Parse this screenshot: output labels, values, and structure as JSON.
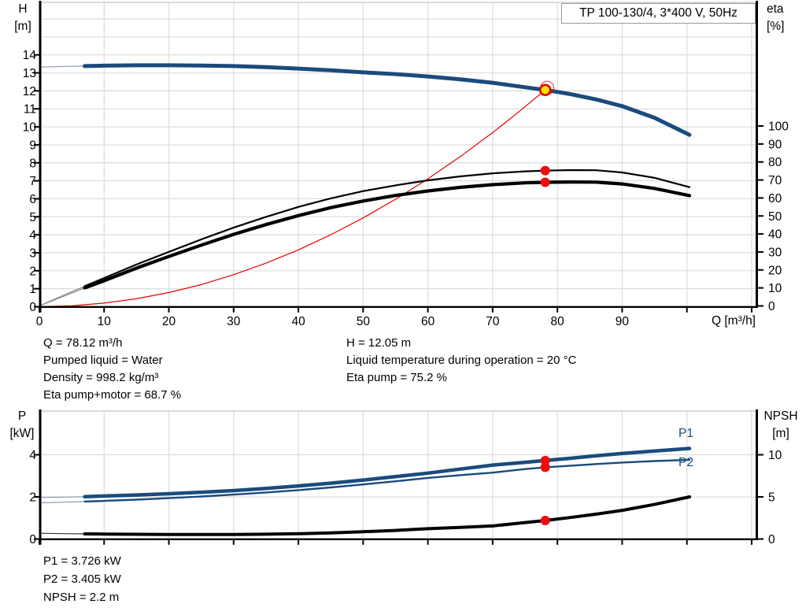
{
  "title_box": "TP 100-130/4, 3*400 V, 50Hz",
  "colors": {
    "curve_blue": "#1a4b7d",
    "curve_black": "#000000",
    "curve_red": "#e60000",
    "marker_red": "#ee0d0d",
    "marker_yellow": "#ffe400",
    "thin_blue": "#8b9bb0",
    "thin_gray": "#8a8a8a",
    "thin_dark": "#333333",
    "grid": "#dcdcdc",
    "border": "#c4c4c4",
    "axis": "#000000"
  },
  "top_chart": {
    "left_axis": {
      "title_line1": "H",
      "title_line2": "[m]",
      "ticks": [
        0,
        1,
        2,
        3,
        4,
        5,
        6,
        7,
        8,
        9,
        10,
        11,
        12,
        13,
        14
      ]
    },
    "right_axis": {
      "title_line1": "eta",
      "title_line2": "[%]",
      "ticks": [
        0,
        10,
        20,
        30,
        40,
        50,
        60,
        70,
        80,
        90,
        100
      ]
    },
    "x_axis": {
      "title": "Q [m³/h]",
      "labeled_ticks": [
        0,
        10,
        20,
        30,
        40,
        50,
        60,
        70,
        80,
        90
      ]
    }
  },
  "bottom_chart": {
    "left_axis": {
      "title_line1": "P",
      "title_line2": "[kW]",
      "ticks": [
        0,
        2,
        4
      ]
    },
    "right_axis": {
      "title_line1": "NPSH",
      "title_line2": "[m]",
      "ticks": [
        0,
        5,
        10
      ]
    },
    "curve_labels": {
      "p1": "P1",
      "p2": "P2"
    }
  },
  "info_top": {
    "left": [
      "Q = 78.12 m³/h",
      "Pumped liquid = Water",
      "Density = 998.2 kg/m³",
      "Eta pump+motor = 68.7 %"
    ],
    "right": [
      "H = 12.05 m",
      "Liquid temperature during operation = 20 °C",
      "Eta pump = 75.2 %"
    ]
  },
  "info_bottom": [
    "P1 = 3.726 kW",
    "P2 = 3.405 kW",
    "NPSH = 2.2 m"
  ],
  "chart_data": [
    {
      "type": "line",
      "title": "QH / efficiency curves",
      "xlabel": "Q [m³/h]",
      "x_range": [
        0,
        111
      ],
      "y_left": {
        "label": "H [m]",
        "range": [
          0,
          16.9
        ]
      },
      "y_right": {
        "label": "eta [%]",
        "range": [
          0,
          100
        ]
      },
      "grid": true,
      "series": [
        {
          "name": "system-curve",
          "axis": "left",
          "color": "red",
          "width": 1.2,
          "split": false,
          "points": [
            [
              0,
              0
            ],
            [
              5,
              0.05
            ],
            [
              10,
              0.2
            ],
            [
              15,
              0.44
            ],
            [
              20,
              0.79
            ],
            [
              25,
              1.23
            ],
            [
              30,
              1.78
            ],
            [
              35,
              2.42
            ],
            [
              40,
              3.16
            ],
            [
              45,
              4.0
            ],
            [
              50,
              4.94
            ],
            [
              55,
              5.97
            ],
            [
              60,
              7.11
            ],
            [
              65,
              8.35
            ],
            [
              70,
              9.68
            ],
            [
              74,
              10.82
            ],
            [
              78.12,
              12.05
            ]
          ]
        },
        {
          "name": "eta-pump",
          "axis": "right",
          "color": "black",
          "width": 2.2,
          "split": true,
          "points": [
            [
              0,
              0
            ],
            [
              3,
              4.8
            ],
            [
              7,
              11
            ],
            [
              10,
              15.5
            ],
            [
              15,
              23
            ],
            [
              20,
              30
            ],
            [
              25,
              37
            ],
            [
              30,
              43.5
            ],
            [
              35,
              49.5
            ],
            [
              40,
              55
            ],
            [
              45,
              59.8
            ],
            [
              50,
              63.8
            ],
            [
              55,
              67
            ],
            [
              60,
              69.8
            ],
            [
              65,
              72
            ],
            [
              70,
              73.7
            ],
            [
              75,
              74.8
            ],
            [
              78.12,
              75.2
            ],
            [
              82,
              75.5
            ],
            [
              86,
              75.4
            ],
            [
              90,
              74.2
            ],
            [
              95,
              71.2
            ],
            [
              100.4,
              66
            ]
          ]
        },
        {
          "name": "eta-pump-motor",
          "axis": "right",
          "color": "black",
          "width": 4.2,
          "split": true,
          "points": [
            [
              0,
              0
            ],
            [
              3,
              4.3
            ],
            [
              7,
              10
            ],
            [
              10,
              14
            ],
            [
              15,
              21
            ],
            [
              20,
              27.5
            ],
            [
              25,
              33.8
            ],
            [
              30,
              39.8
            ],
            [
              35,
              45.2
            ],
            [
              40,
              50.2
            ],
            [
              45,
              54.6
            ],
            [
              50,
              58.3
            ],
            [
              55,
              61.4
            ],
            [
              60,
              63.9
            ],
            [
              65,
              65.9
            ],
            [
              70,
              67.4
            ],
            [
              75,
              68.4
            ],
            [
              78.12,
              68.7
            ],
            [
              82,
              68.9
            ],
            [
              86,
              68.8
            ],
            [
              90,
              67.8
            ],
            [
              95,
              65.3
            ],
            [
              100.4,
              61.3
            ]
          ]
        },
        {
          "name": "head",
          "axis": "left",
          "color": "blue",
          "width": 5,
          "split": true,
          "points": [
            [
              0,
              13.32
            ],
            [
              4,
              13.36
            ],
            [
              7,
              13.38
            ],
            [
              10,
              13.4
            ],
            [
              15,
              13.42
            ],
            [
              20,
              13.42
            ],
            [
              25,
              13.41
            ],
            [
              30,
              13.38
            ],
            [
              35,
              13.32
            ],
            [
              40,
              13.24
            ],
            [
              45,
              13.14
            ],
            [
              50,
              13.03
            ],
            [
              55,
              12.93
            ],
            [
              60,
              12.8
            ],
            [
              65,
              12.64
            ],
            [
              70,
              12.45
            ],
            [
              75,
              12.2
            ],
            [
              78.12,
              12.05
            ],
            [
              82,
              11.82
            ],
            [
              86,
              11.52
            ],
            [
              90,
              11.15
            ],
            [
              95,
              10.5
            ],
            [
              100.4,
              9.55
            ]
          ]
        }
      ],
      "markers": [
        {
          "name": "eta-pump-point",
          "q": 78.12,
          "value": 75.2,
          "axis": "right",
          "style": "dot"
        },
        {
          "name": "eta-pump-motor-point",
          "q": 78.12,
          "value": 68.7,
          "axis": "right",
          "style": "dot"
        },
        {
          "name": "duty-point",
          "q": 78.12,
          "value": 12.05,
          "axis": "left",
          "style": "duty"
        }
      ]
    },
    {
      "type": "line",
      "title": "Power / NPSH curves",
      "xlabel": "Q [m³/h]",
      "x_range": [
        0,
        111
      ],
      "y_left": {
        "label": "P [kW]",
        "range": [
          0,
          6.05
        ]
      },
      "y_right": {
        "label": "NPSH [m]",
        "range": [
          0,
          15.1
        ]
      },
      "grid": true,
      "series": [
        {
          "name": "npsh",
          "axis": "right",
          "color": "black",
          "width": 4,
          "split": true,
          "points": [
            [
              0,
              0.68
            ],
            [
              4,
              0.64
            ],
            [
              7,
              0.61
            ],
            [
              10,
              0.59
            ],
            [
              15,
              0.56
            ],
            [
              20,
              0.54
            ],
            [
              25,
              0.53
            ],
            [
              30,
              0.54
            ],
            [
              35,
              0.57
            ],
            [
              40,
              0.63
            ],
            [
              45,
              0.73
            ],
            [
              50,
              0.86
            ],
            [
              55,
              1.02
            ],
            [
              60,
              1.22
            ],
            [
              65,
              1.38
            ],
            [
              70,
              1.55
            ],
            [
              75,
              1.95
            ],
            [
              78.12,
              2.2
            ],
            [
              82,
              2.55
            ],
            [
              86,
              2.95
            ],
            [
              90,
              3.4
            ],
            [
              95,
              4.1
            ],
            [
              100.4,
              5.0
            ]
          ]
        },
        {
          "name": "p2",
          "axis": "left",
          "color": "blue",
          "width": 2.4,
          "split": true,
          "points": [
            [
              0,
              1.72
            ],
            [
              4,
              1.75
            ],
            [
              7,
              1.78
            ],
            [
              10,
              1.81
            ],
            [
              15,
              1.87
            ],
            [
              20,
              1.94
            ],
            [
              25,
              2.02
            ],
            [
              30,
              2.11
            ],
            [
              35,
              2.21
            ],
            [
              40,
              2.32
            ],
            [
              45,
              2.45
            ],
            [
              50,
              2.59
            ],
            [
              55,
              2.74
            ],
            [
              60,
              2.9
            ],
            [
              65,
              3.03
            ],
            [
              70,
              3.15
            ],
            [
              75,
              3.32
            ],
            [
              78.12,
              3.405
            ],
            [
              82,
              3.48
            ],
            [
              86,
              3.56
            ],
            [
              90,
              3.63
            ],
            [
              95,
              3.7
            ],
            [
              100.4,
              3.76
            ]
          ]
        },
        {
          "name": "p1",
          "axis": "left",
          "color": "blue",
          "width": 4.5,
          "split": true,
          "points": [
            [
              0,
              1.97
            ],
            [
              4,
              1.99
            ],
            [
              7,
              2.01
            ],
            [
              10,
              2.04
            ],
            [
              15,
              2.09
            ],
            [
              20,
              2.15
            ],
            [
              25,
              2.22
            ],
            [
              30,
              2.3
            ],
            [
              35,
              2.4
            ],
            [
              40,
              2.52
            ],
            [
              45,
              2.65
            ],
            [
              50,
              2.8
            ],
            [
              55,
              2.96
            ],
            [
              60,
              3.13
            ],
            [
              65,
              3.32
            ],
            [
              70,
              3.51
            ],
            [
              75,
              3.64
            ],
            [
              78.12,
              3.726
            ],
            [
              82,
              3.83
            ],
            [
              86,
              3.95
            ],
            [
              90,
              4.06
            ],
            [
              95,
              4.18
            ],
            [
              100.4,
              4.3
            ]
          ]
        }
      ],
      "markers": [
        {
          "name": "p1-point",
          "q": 78.12,
          "value": 3.726,
          "axis": "left",
          "style": "dot"
        },
        {
          "name": "p2-point",
          "q": 78.12,
          "value": 3.405,
          "axis": "left",
          "style": "dot"
        },
        {
          "name": "npsh-point",
          "q": 78.12,
          "value": 2.2,
          "axis": "right",
          "style": "dot"
        }
      ]
    }
  ],
  "duty_point": {
    "Q": "78.12",
    "H": "12.05",
    "eta_pump": "75.2",
    "eta_pump_motor": "68.7",
    "P1": "3.726",
    "P2": "3.405",
    "NPSH": "2.2"
  }
}
